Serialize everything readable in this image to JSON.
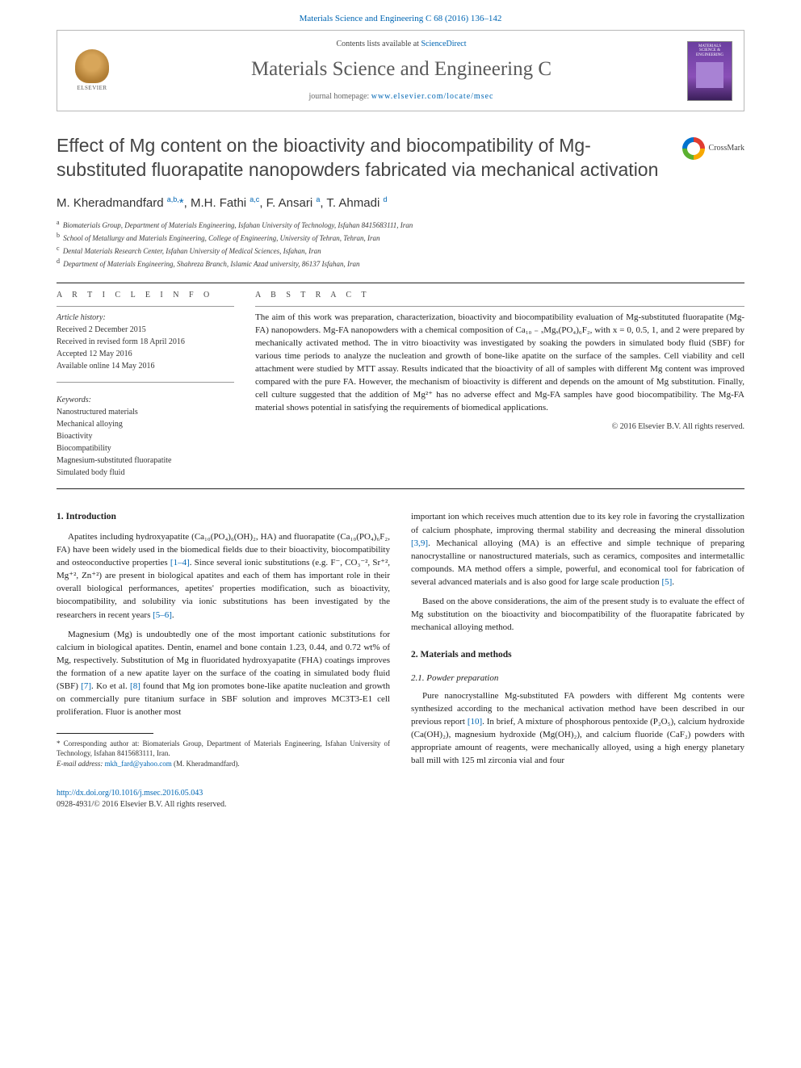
{
  "top_link": {
    "text": "Materials Science and Engineering C 68 (2016) 136–142",
    "color": "#0066b3"
  },
  "header": {
    "contents_prefix": "Contents lists available at ",
    "contents_link": "ScienceDirect",
    "journal": "Materials Science and Engineering C",
    "homepage_prefix": "journal homepage: ",
    "homepage_url": "www.elsevier.com/locate/msec",
    "publisher_logo_label": "ELSEVIER",
    "cover_label_1": "MATERIALS SCIENCE & ENGINEERING",
    "cover_label_2": "C"
  },
  "title": "Effect of Mg content on the bioactivity and biocompatibility of Mg-substituted fluorapatite nanopowders fabricated via mechanical activation",
  "crossmark": "CrossMark",
  "authors_html": "M. Kheradmandfard <sup>a,b,</sup><span class='star'>*</span>, M.H. Fathi <sup>a,c</sup>, F. Ansari <sup>a</sup>, T. Ahmadi <sup>d</sup>",
  "affiliations": [
    {
      "sup": "a",
      "text": "Biomaterials Group, Department of Materials Engineering, Isfahan University of Technology, Isfahan 8415683111, Iran"
    },
    {
      "sup": "b",
      "text": "School of Metallurgy and Materials Engineering, College of Engineering, University of Tehran, Tehran, Iran"
    },
    {
      "sup": "c",
      "text": "Dental Materials Research Center, Isfahan University of Medical Sciences, Isfahan, Iran"
    },
    {
      "sup": "d",
      "text": "Department of Materials Engineering, Shahreza Branch, Islamic Azad university, 86137 Isfahan, Iran"
    }
  ],
  "article_info": {
    "heading": "A R T I C L E   I N F O",
    "history_label": "Article history:",
    "history": [
      "Received 2 December 2015",
      "Received in revised form 18 April 2016",
      "Accepted 12 May 2016",
      "Available online 14 May 2016"
    ],
    "keywords_label": "Keywords:",
    "keywords": [
      "Nanostructured materials",
      "Mechanical alloying",
      "Bioactivity",
      "Biocompatibility",
      "Magnesium-substituted fluorapatite",
      "Simulated body fluid"
    ]
  },
  "abstract": {
    "heading": "A B S T R A C T",
    "text": "The aim of this work was preparation, characterization, bioactivity and biocompatibility evaluation of Mg-substituted fluorapatite (Mg-FA) nanopowders. Mg-FA nanopowders with a chemical composition of Ca₁₀ ₋ ₓMgₓ(PO₄)₆F₂, with x = 0, 0.5, 1, and 2 were prepared by mechanically activated method. The in vitro bioactivity was investigated by soaking the powders in simulated body fluid (SBF) for various time periods to analyze the nucleation and growth of bone-like apatite on the surface of the samples. Cell viability and cell attachment were studied by MTT assay. Results indicated that the bioactivity of all of samples with different Mg content was improved compared with the pure FA. However, the mechanism of bioactivity is different and depends on the amount of Mg substitution. Finally, cell culture suggested that the addition of Mg²⁺ has no adverse effect and Mg-FA samples have good biocompatibility. The Mg-FA material shows potential in satisfying the requirements of biomedical applications.",
    "copyright": "© 2016 Elsevier B.V. All rights reserved."
  },
  "body": {
    "col1": {
      "h_intro": "1. Introduction",
      "p1_a": "Apatites including hydroxyapatite (Ca₁₀(PO₄)₆(OH)₂, HA) and fluorapatite (Ca₁₀(PO₄)₆F₂, FA) have been widely used in the biomedical fields due to their bioactivity, biocompatibility and osteoconductive properties ",
      "p1_link1": "[1–4]",
      "p1_b": ". Since several ionic substitutions (e.g. F⁻, CO₃⁻², Sr⁺², Mg⁺², Zn⁺²) are present in biological apatites and each of them has important role in their overall biological performances, apetites' properties modification, such as bioactivity, biocompatibility, and solubility via ionic substitutions has been investigated by the researchers in recent years ",
      "p1_link2": "[5–6]",
      "p1_c": ".",
      "p2_a": "Magnesium (Mg) is undoubtedly one of the most important cationic substitutions for calcium in biological apatites. Dentin, enamel and bone contain 1.23, 0.44, and 0.72 wt% of Mg, respectively. Substitution of Mg in fluoridated hydroxyapatite (FHA) coatings improves the formation of a new apatite layer on the surface of the coating in simulated body fluid (SBF) ",
      "p2_link1": "[7]",
      "p2_b": ". Ko et al. ",
      "p2_link2": "[8]",
      "p2_c": " found that Mg ion promotes bone-like apatite nucleation and growth on commercially pure titanium surface in SBF solution and improves MC3T3-E1 cell proliferation. Fluor is another most",
      "fn_label": "* Corresponding author at: Biomaterials Group, Department of Materials Engineering, Isfahan University of Technology, Isfahan 8415683111, Iran.",
      "fn_email_label": "E-mail address: ",
      "fn_email": "mkh_fard@yahoo.com",
      "fn_email_person": " (M. Kheradmandfard)."
    },
    "col2": {
      "p1_a": "important ion which receives much attention due to its key role in favoring the crystallization of calcium phosphate, improving thermal stability and decreasing the mineral dissolution ",
      "p1_link1": "[3,9]",
      "p1_b": ". Mechanical alloying (MA) is an effective and simple technique of preparing nanocrystalline or nanostructured materials, such as ceramics, composites and intermetallic compounds. MA method offers a simple, powerful, and economical tool for fabrication of several advanced materials and is also good for large scale production ",
      "p1_link2": "[5]",
      "p1_c": ".",
      "p2": "Based on the above considerations, the aim of the present study is to evaluate the effect of Mg substitution on the bioactivity and biocompatibility of the fluorapatite fabricated by mechanical alloying method.",
      "h_mm": "2. Materials and methods",
      "h_pp": "2.1. Powder preparation",
      "p3_a": "Pure nanocrystalline Mg-substituted FA powders with different Mg contents were synthesized according to the mechanical activation method have been described in our previous report ",
      "p3_link1": "[10]",
      "p3_b": ". In brief, A mixture of phosphorous pentoxide (P₂O₅), calcium hydroxide (Ca(OH)₂), magnesium hydroxide (Mg(OH)₂), and calcium fluoride (CaF₂) powders with appropriate amount of reagents, were mechanically alloyed, using a high energy planetary ball mill with 125 ml zirconia vial and four"
    }
  },
  "footer": {
    "doi": "http://dx.doi.org/10.1016/j.msec.2016.05.043",
    "issn_line": "0928-4931/© 2016 Elsevier B.V. All rights reserved."
  },
  "colors": {
    "link": "#0066b3",
    "body_text": "#222222",
    "heading_gray": "#444444",
    "border": "#b8b8b8"
  },
  "typography": {
    "title_fontsize": 23,
    "authors_fontsize": 15,
    "journal_fontsize": 25,
    "body_fontsize": 11,
    "affil_fontsize": 9,
    "footnote_fontsize": 9
  }
}
